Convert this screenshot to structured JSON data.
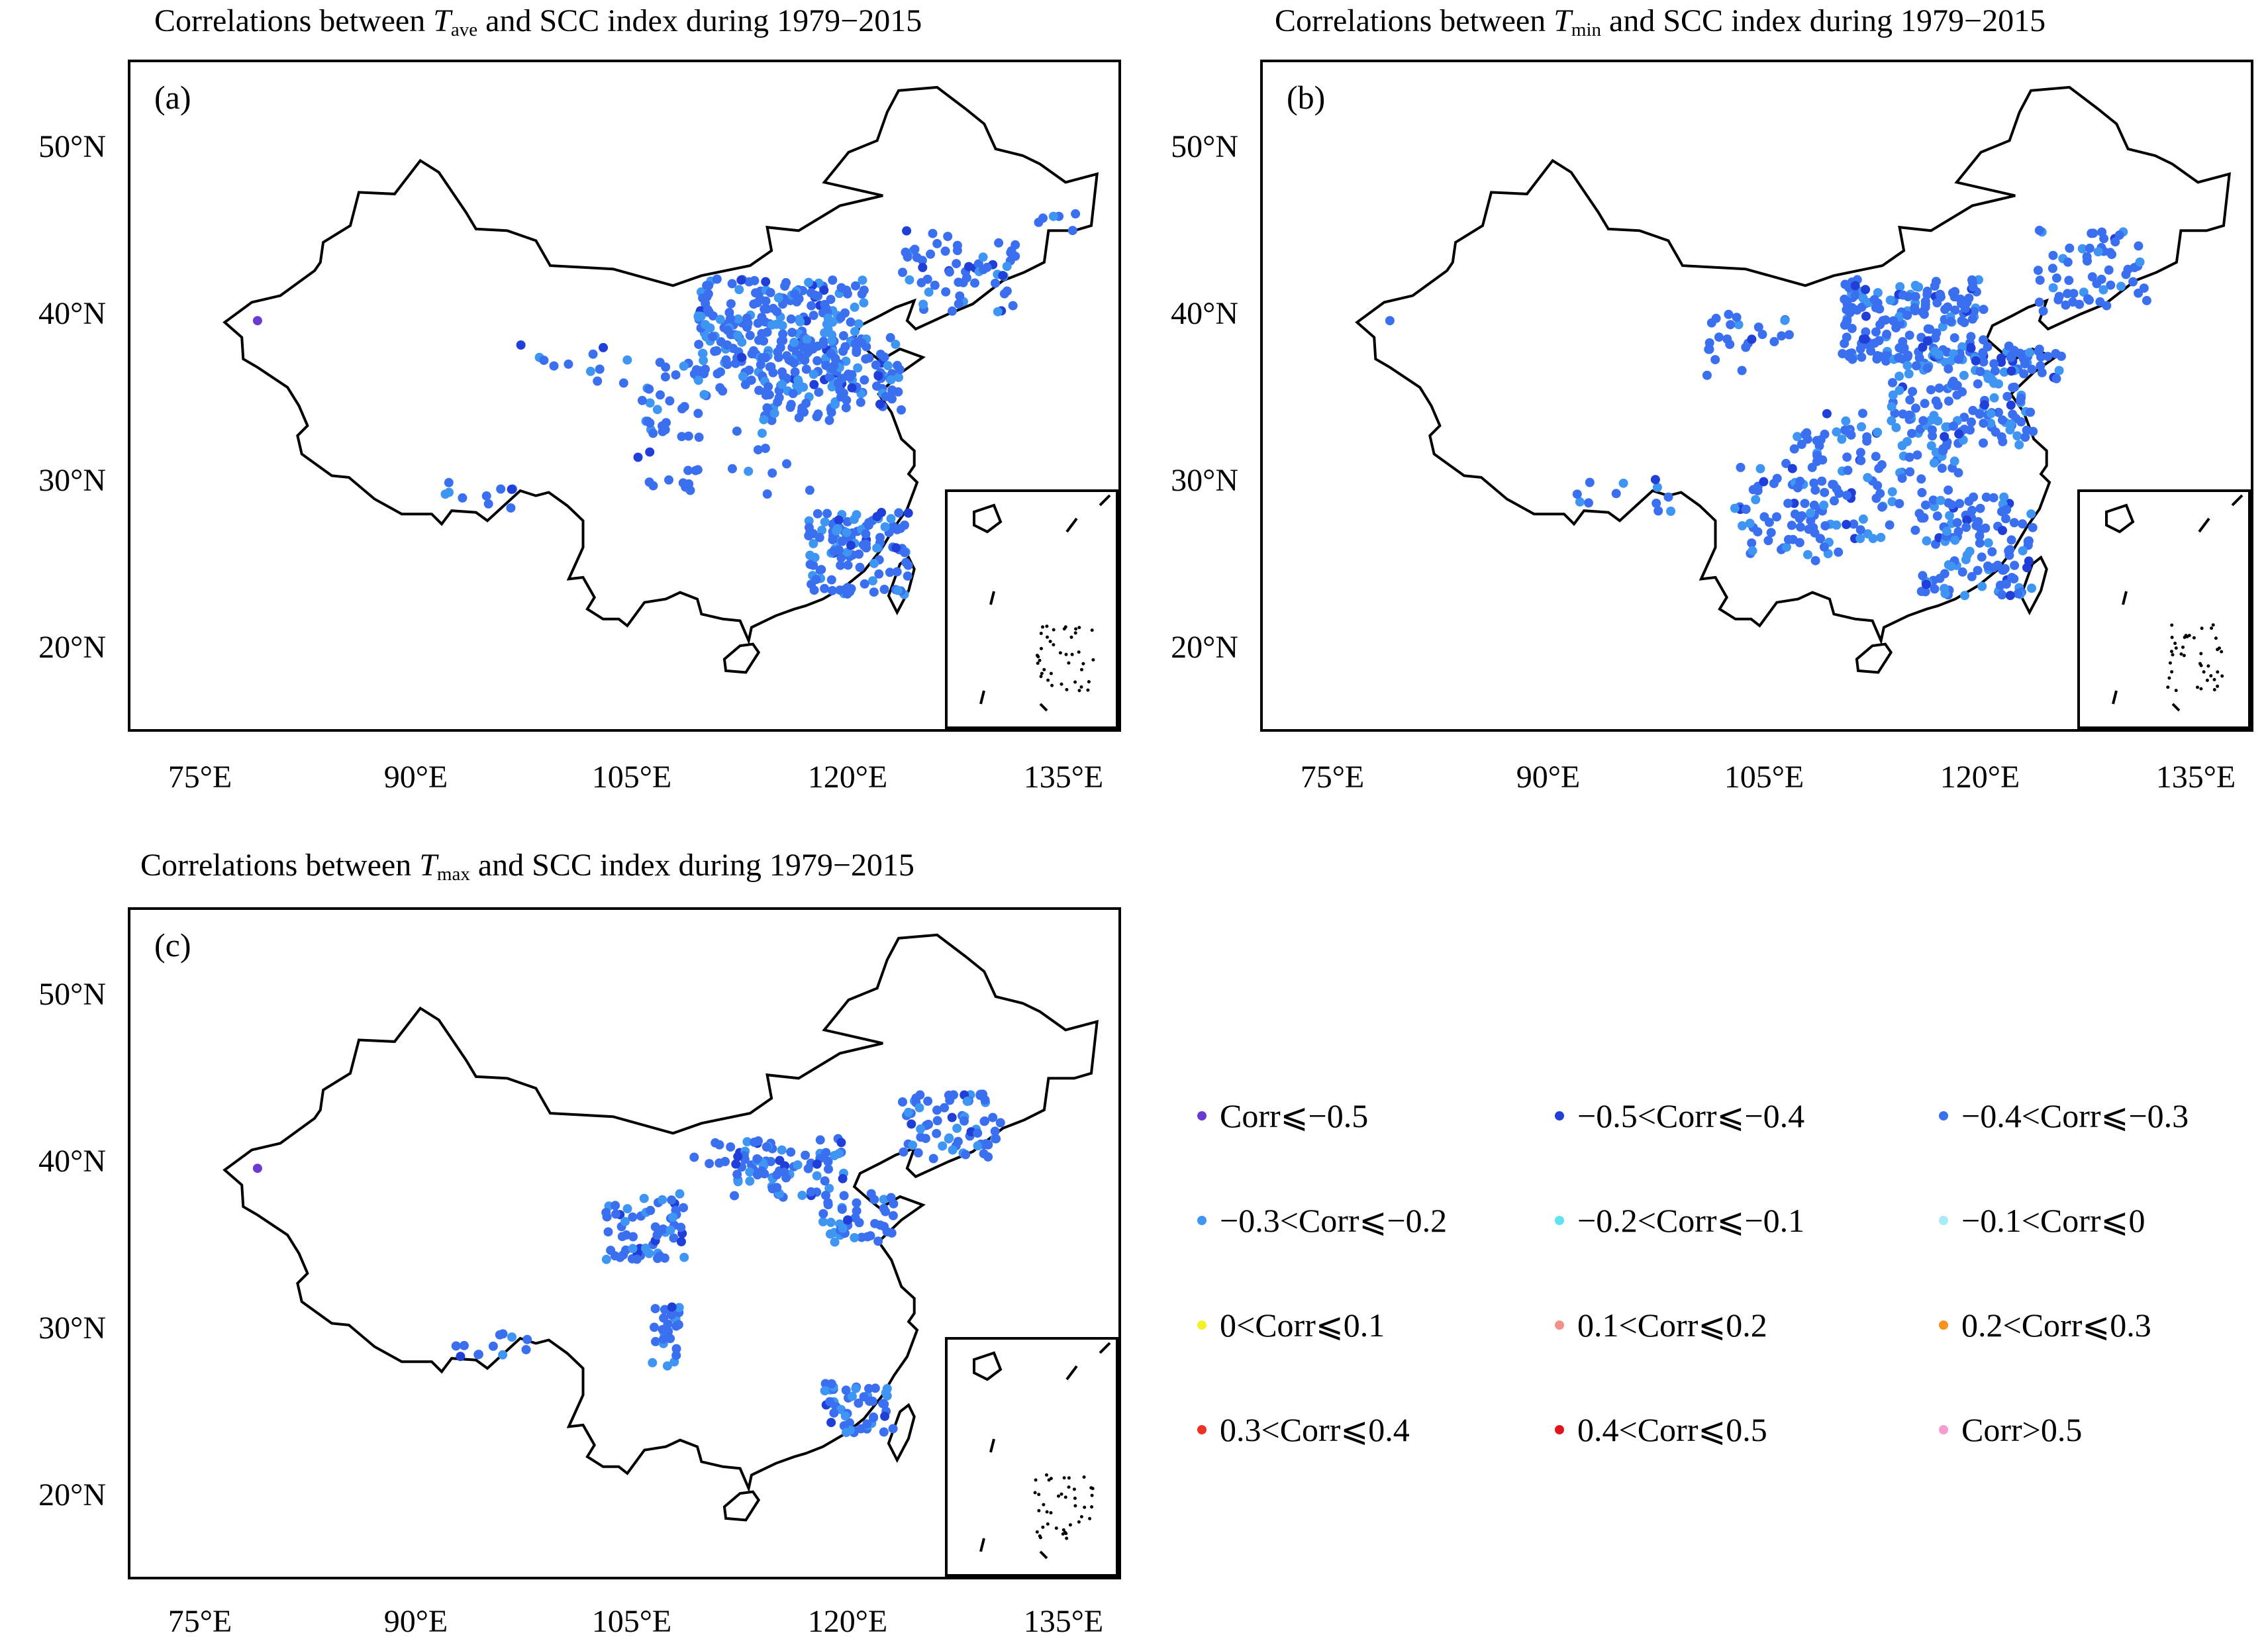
{
  "panels": [
    {
      "id": "a",
      "letter": "(a)",
      "title": {
        "prefix": "Correlations between ",
        "var": "T",
        "sub": "ave",
        "suffix": " and SCC index during 1979−2015"
      },
      "lat_labels": [
        "50°N",
        "40°N",
        "30°N",
        "20°N"
      ],
      "lon_labels": [
        "75°E",
        "90°E",
        "105°E",
        "120°E",
        "135°E"
      ]
    },
    {
      "id": "b",
      "letter": "(b)",
      "title": {
        "prefix": "Correlations between ",
        "var": "T",
        "sub": "min",
        "suffix": " and SCC index during 1979−2015"
      },
      "lat_labels": [
        "50°N",
        "40°N",
        "30°N",
        "20°N"
      ],
      "lon_labels": [
        "75°E",
        "90°E",
        "105°E",
        "120°E",
        "135°E"
      ]
    },
    {
      "id": "c",
      "letter": "(c)",
      "title": {
        "prefix": "Correlations between ",
        "var": "T",
        "sub": "max",
        "suffix": " and SCC index during 1979−2015"
      },
      "lat_labels": [
        "50°N",
        "40°N",
        "30°N",
        "20°N"
      ],
      "lon_labels": [
        "75°E",
        "90°E",
        "105°E",
        "120°E",
        "135°E"
      ]
    }
  ],
  "legend": [
    {
      "label": "Corr⩽−0.5",
      "color": "#6a3bd0"
    },
    {
      "label": "−0.5<Corr⩽−0.4",
      "color": "#1f3fd8"
    },
    {
      "label": "−0.4<Corr⩽−0.3",
      "color": "#3a6ff0"
    },
    {
      "label": "−0.3<Corr⩽−0.2",
      "color": "#3f95f2"
    },
    {
      "label": "−0.2<Corr⩽−0.1",
      "color": "#5ee2f0"
    },
    {
      "label": "−0.1<Corr⩽0",
      "color": "#a6ecf6"
    },
    {
      "label": "0<Corr⩽0.1",
      "color": "#f4f02a"
    },
    {
      "label": "0.1<Corr⩽0.2",
      "color": "#f2908a"
    },
    {
      "label": "0.2<Corr⩽0.3",
      "color": "#f7931e"
    },
    {
      "label": "0.3<Corr⩽0.4",
      "color": "#ee3224"
    },
    {
      "label": "0.4<Corr⩽0.5",
      "color": "#e1141e"
    },
    {
      "label": "Corr>0.5",
      "color": "#f59bd0"
    }
  ]
}
